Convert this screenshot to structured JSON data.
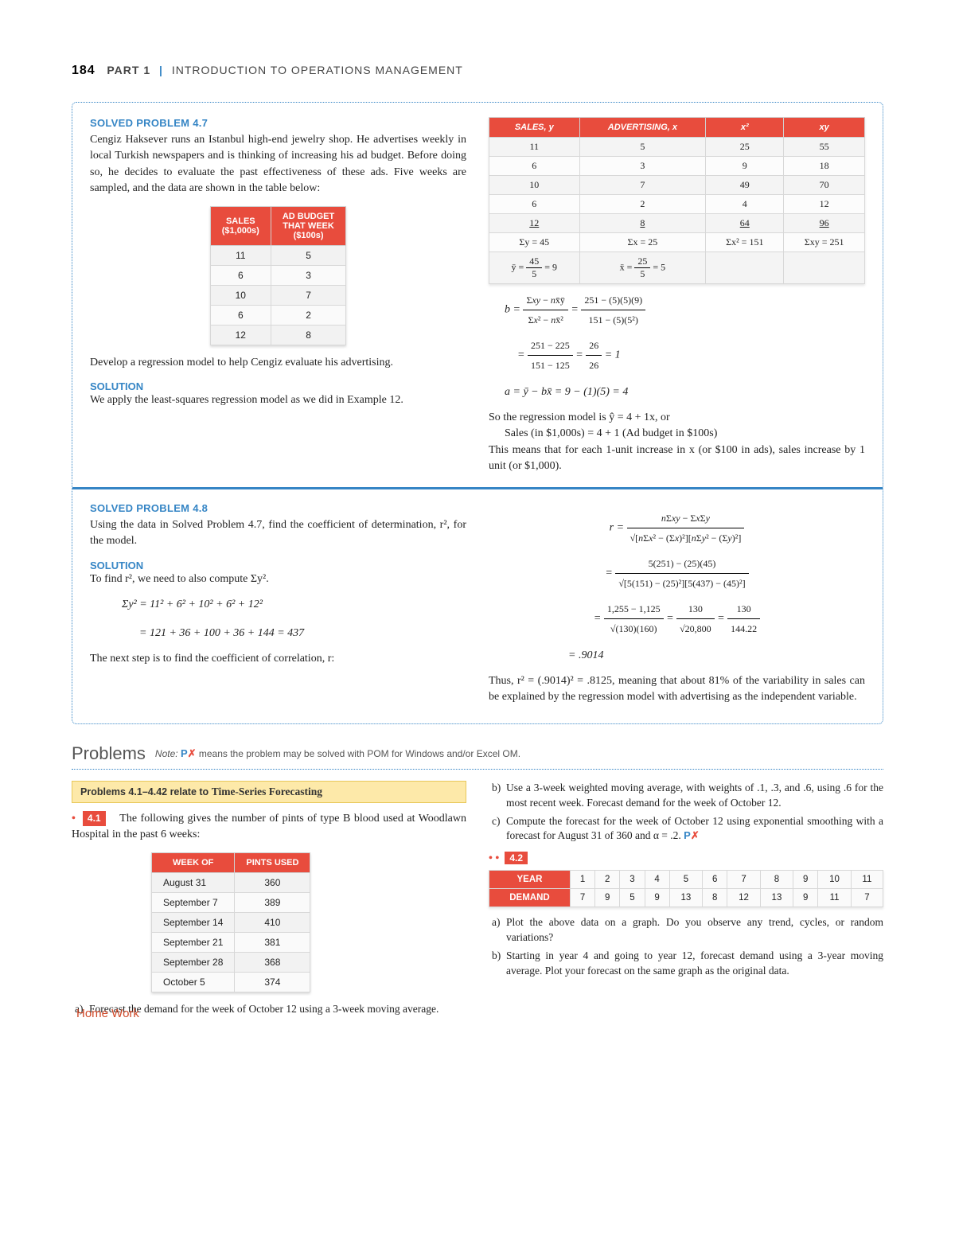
{
  "header": {
    "page_number": "184",
    "part_label": "PART 1",
    "chapter_title": "INTRODUCTION TO OPERATIONS MANAGEMENT"
  },
  "problem47": {
    "title": "SOLVED PROBLEM 4.7",
    "intro": "Cengiz Haksever runs an Istanbul high-end jewelry shop. He advertises weekly in local Turkish newspapers and is thinking of increasing his ad budget. Before doing so, he decides to evaluate the past effectiveness of these ads. Five weeks are sampled, and the data are shown in the table below:",
    "table_headers": {
      "c1": "SALES\n($1,000s)",
      "c2": "AD BUDGET\nTHAT WEEK\n($100s)"
    },
    "table_rows": [
      {
        "sales": "11",
        "ad": "5"
      },
      {
        "sales": "6",
        "ad": "3"
      },
      {
        "sales": "10",
        "ad": "7"
      },
      {
        "sales": "6",
        "ad": "2"
      },
      {
        "sales": "12",
        "ad": "8"
      }
    ],
    "question": "Develop a regression model to help Cengiz evaluate his advertising.",
    "solution_title": "SOLUTION",
    "solution_text": "We apply the least-squares regression model as we did in Example 12.",
    "calc_headers": {
      "c1": "SALES, y",
      "c2": "ADVERTISING, x",
      "c3": "x²",
      "c4": "xy"
    },
    "calc_rows": [
      {
        "y": "11",
        "x": "5",
        "x2": "25",
        "xy": "55"
      },
      {
        "y": "6",
        "x": "3",
        "x2": "9",
        "xy": "18"
      },
      {
        "y": "10",
        "x": "7",
        "x2": "49",
        "xy": "70"
      },
      {
        "y": "6",
        "x": "2",
        "x2": "4",
        "xy": "12"
      },
      {
        "y": "12",
        "x": "8",
        "x2": "64",
        "xy": "96"
      }
    ],
    "sums": {
      "sy": "Σy = 45",
      "sx": "Σx = 25",
      "sx2": "Σx² = 151",
      "sxy": "Σxy = 251"
    },
    "means": {
      "ybar": "ȳ = 45/5 = 9",
      "xbar": "x̄ = 25/5 = 5"
    },
    "b_line1": "b = (Σxy − nx̄ȳ) / (Σx² − nx̄²) = (251 − (5)(5)(9)) / (151 − (5)(5²))",
    "b_line2": "= (251 − 225) / (151 − 125) = 26/26 = 1",
    "a_line": "a = ȳ − bx̄ = 9 − (1)(5) = 4",
    "concl1": "So the regression model is ŷ = 4 + 1x, or",
    "concl2": "Sales (in $1,000s) = 4 + 1 (Ad budget in $100s)",
    "concl3": "This means that for each 1-unit increase in x (or $100 in ads), sales increase by 1 unit (or $1,000)."
  },
  "problem48": {
    "title": "SOLVED PROBLEM 4.8",
    "intro": "Using the data in Solved Problem 4.7, find the coefficient of determination, r², for the model.",
    "solution_title": "SOLUTION",
    "sol_text": "To find r², we need to also compute Σy².",
    "sy2_line1": "Σy² = 11² + 6² + 10² + 6² + 12²",
    "sy2_line2": "= 121 + 36 + 100 + 36 + 144 = 437",
    "next_step": "The next step is to find the coefficient of correlation, r:",
    "r_line1": "r = (nΣxy − ΣxΣy) / √[nΣx² − (Σx)²][nΣy² − (Σy)²]",
    "r_line2": "= (5(251) − (25)(45)) / √[5(151) − (25)²][5(437) − (45)²]",
    "r_line3": "= (1,255 − 1,125) / √(130)(160) = 130 / √20,800 = 130 / 144.22",
    "r_line4": "= .9014",
    "concl": "Thus, r² = (.9014)² = .8125, meaning that about 81% of the variability in sales can be explained by the regression model with advertising as the independent variable."
  },
  "problems_section": {
    "title": "Problems",
    "note_prefix": "Note:",
    "note_text": "means the problem may be solved with POM for Windows and/or Excel OM.",
    "yellow_bar": "Problems 4.1–4.42 relate to Time-Series Forecasting",
    "homework_label": "Home Work"
  },
  "p41": {
    "num": "4.1",
    "text_a": "The following gives the number of pints of type B blood used at Woodlawn Hospital in the past 6 weeks:",
    "table_headers": {
      "c1": "WEEK OF",
      "c2": "PINTS USED"
    },
    "rows": [
      {
        "w": "August 31",
        "p": "360"
      },
      {
        "w": "September 7",
        "p": "389"
      },
      {
        "w": "September 14",
        "p": "410"
      },
      {
        "w": "September 21",
        "p": "381"
      },
      {
        "w": "September 28",
        "p": "368"
      },
      {
        "w": "October 5",
        "p": "374"
      }
    ],
    "a": "Forecast the demand for the week of October 12 using a 3-week moving average.",
    "b": "Use a 3-week weighted moving average, with weights of .1, .3, and .6, using .6 for the most recent week. Forecast demand for the week of October 12.",
    "c": "Compute the forecast for the week of October 12 using exponential smoothing with a forecast for August 31 of 360 and α = .2."
  },
  "p42": {
    "num": "4.2",
    "year_label": "YEAR",
    "demand_label": "DEMAND",
    "years": [
      "1",
      "2",
      "3",
      "4",
      "5",
      "6",
      "7",
      "8",
      "9",
      "10",
      "11"
    ],
    "demands": [
      "7",
      "9",
      "5",
      "9",
      "13",
      "8",
      "12",
      "13",
      "9",
      "11",
      "7"
    ],
    "a": "Plot the above data on a graph. Do you observe any trend, cycles, or random variations?",
    "b": "Starting in year 4 and going to year 12, forecast demand using a 3-year moving average. Plot your forecast on the same graph as the original data."
  }
}
